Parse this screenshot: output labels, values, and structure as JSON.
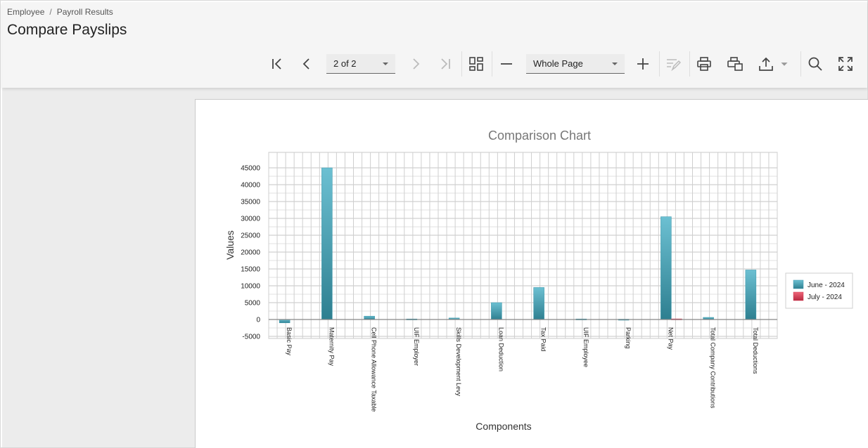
{
  "breadcrumb": {
    "parent": "Employee",
    "separator": "/",
    "current": "Payroll Results"
  },
  "page_title": "Compare Payslips",
  "toolbar": {
    "page_selector_value": "2 of 2",
    "zoom_value": "Whole Page",
    "icons": [
      "first-page-icon",
      "previous-page-icon",
      "next-page-icon",
      "last-page-icon",
      "multipage-icon",
      "zoom-out-icon",
      "zoom-in-icon",
      "edit-fields-icon",
      "print-icon",
      "print-page-icon",
      "export-icon",
      "search-icon",
      "fullscreen-icon"
    ]
  },
  "colors": {
    "june": "#3a96aa",
    "july": "#d23a52",
    "grid": "#c8c8c8"
  },
  "chart_data": {
    "type": "bar",
    "title": "Comparison Chart",
    "xlabel": "Components",
    "ylabel": "Values",
    "ylim": [
      -5000,
      45000
    ],
    "yticks": [
      "45000",
      "40000",
      "35000",
      "30000",
      "25000",
      "20000",
      "15000",
      "10000",
      "5000",
      "0",
      "-5000"
    ],
    "ytick_values": [
      45000,
      40000,
      35000,
      30000,
      25000,
      20000,
      15000,
      10000,
      5000,
      0,
      -5000
    ],
    "categories": [
      "Basic Pay",
      "Maternity Pay",
      "Cell Phone Allowance Taxable",
      "UIF Employer",
      "Skills Development Levy",
      "Loan Deduction",
      "Tax Paid",
      "UIF Employee",
      "Parking",
      "Net Pay",
      "Total Company Contributions",
      "Total Deductions"
    ],
    "series": [
      {
        "name": "June - 2024",
        "values": [
          -1000,
          45000,
          1000,
          177,
          450,
          5000,
          9500,
          177,
          100,
          30500,
          627,
          14700
        ]
      },
      {
        "name": "July - 2024",
        "values": [
          0,
          0,
          0,
          0,
          0,
          0,
          0,
          0,
          0,
          200,
          0,
          0
        ]
      }
    ],
    "grid": true,
    "legend_position": "right"
  }
}
